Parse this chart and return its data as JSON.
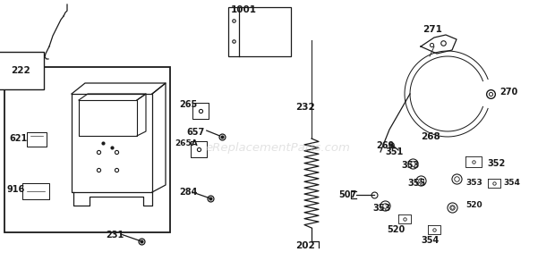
{
  "bg_color": "#ffffff",
  "line_color": "#1a1a1a",
  "watermark": "eReplacementParts.com",
  "figsize": [
    6.2,
    3.01
  ],
  "dpi": 100
}
